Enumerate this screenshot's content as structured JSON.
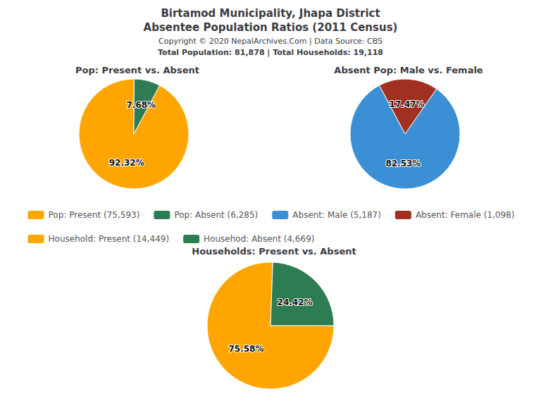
{
  "title": "Birtamod Municipality, Jhapa District",
  "subtitle": "Absentee Population Ratios (2011 Census)",
  "annotations": [
    "Copyright © 2020 NepalArchives.Com | Data Source: CBS",
    "Total Population: 81,878 | Total Households: 19,118"
  ],
  "legend": "center",
  "chart_data": [
    {
      "type": "pie",
      "title": "Pop: Present vs. Absent",
      "categories": [
        "Pop: Present (75,593)",
        "Pop: Absent (6,285)"
      ],
      "values": [
        92.32,
        7.68
      ],
      "value_labels": [
        "92.32%",
        "7.68%"
      ],
      "colors": [
        "#FFA500",
        "#2e7d52"
      ],
      "data_labels": true
    },
    {
      "type": "pie",
      "title": "Absent Pop: Male vs. Female",
      "categories": [
        "Absent: Male (5,187)",
        "Absent: Female (1,098)"
      ],
      "values": [
        82.53,
        17.47
      ],
      "value_labels": [
        "82.53%",
        "17.47%"
      ],
      "colors": [
        "#3b8fd4",
        "#a03020"
      ],
      "data_labels": true
    },
    {
      "type": "pie",
      "title": "Households: Present vs. Absent",
      "categories": [
        "Household: Present (14,449)",
        "Househod: Absent (4,669)"
      ],
      "values": [
        75.58,
        24.42
      ],
      "value_labels": [
        "75.58%",
        "24.42%"
      ],
      "colors": [
        "#FFA500",
        "#2e7d52"
      ],
      "data_labels": true
    }
  ]
}
